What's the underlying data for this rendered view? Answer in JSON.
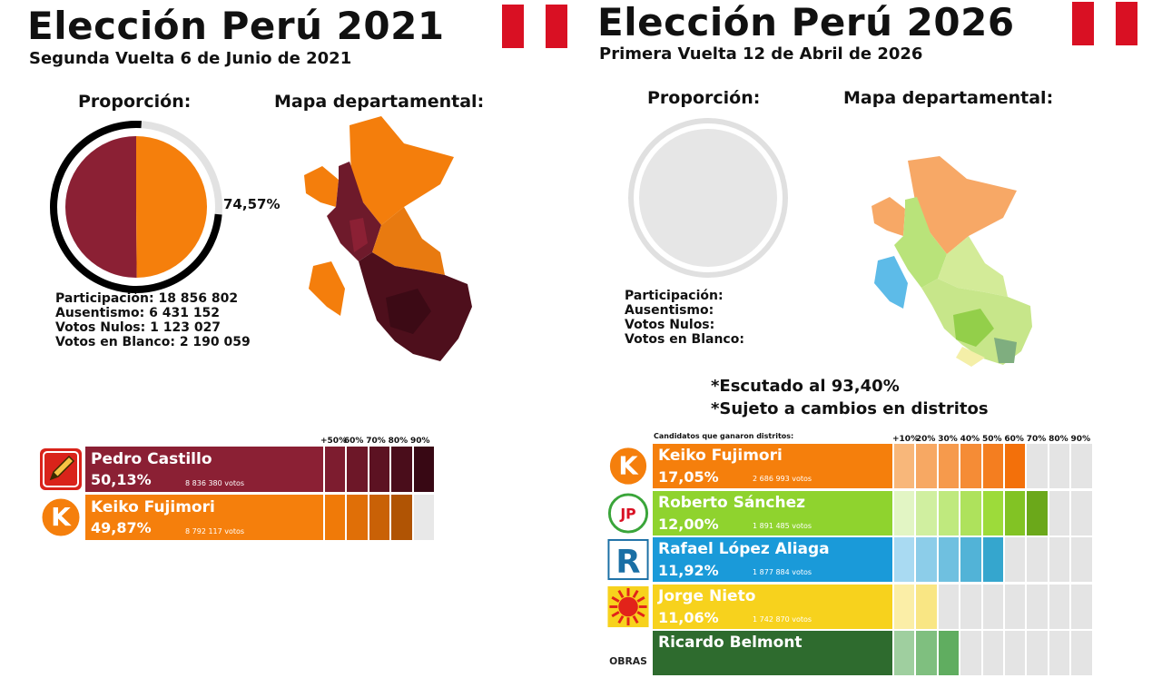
{
  "panel_2021": {
    "title": "Elección Perú 2021",
    "subtitle": "Segunda Vuelta 6 de Junio de 2021",
    "proportion_heading": "Proporción:",
    "map_heading": "Mapa departamental:",
    "turnout_label": "74,57%",
    "stats": [
      "Participación: 18 856 802",
      "Ausentismo: 6 431 152",
      "Votos Nulos: 1 123 027",
      "Votos en Blanco: 2 190 059"
    ],
    "threshold_headers": [
      "+50%",
      "60%",
      "70%",
      "80%",
      "90%"
    ],
    "candidates": [
      {
        "name": "Pedro Castillo",
        "percent": "50,13%",
        "votes": "8 836 380 votos",
        "color": "#8b2034",
        "logo": "pencil-icon",
        "scale_colors": [
          "#7d1c2f",
          "#6d1728",
          "#5c1222",
          "#4a0d1b",
          "#380814"
        ]
      },
      {
        "name": "Keiko Fujimori",
        "percent": "49,87%",
        "votes": "8 792 117 votos",
        "color": "#f57f0c",
        "logo": "k-logo-icon",
        "scale_colors": [
          "#f07a08",
          "#e06f07",
          "#c96106",
          "#b05404",
          "#e8e8e8"
        ]
      }
    ],
    "chart_data": {
      "type": "pie",
      "title": "Proporción:",
      "categories": [
        "Pedro Castillo",
        "Keiko Fujimori"
      ],
      "values": [
        50.13,
        49.87
      ],
      "colors": [
        "#8b2034",
        "#f57f0c"
      ],
      "turnout_ring": 74.57
    }
  },
  "panel_2026": {
    "title": "Elección Perú 2026",
    "subtitle": "Primera Vuelta 12 de Abril de 2026",
    "proportion_heading": "Proporción:",
    "map_heading": "Mapa departamental:",
    "stats": [
      "Participación:",
      "Ausentismo:",
      "Votos Nulos:",
      "Votos en Blanco:"
    ],
    "notes": [
      "*Escutado al 93,40%",
      "*Sujeto a cambios en distritos"
    ],
    "candidates_header": "Candidatos que ganaron distritos:",
    "threshold_headers": [
      "+10%",
      "20%",
      "30%",
      "40%",
      "50%",
      "60%",
      "70%",
      "80%",
      "90%"
    ],
    "candidates": [
      {
        "name": "Keiko Fujimori",
        "percent": "17,05%",
        "votes": "2 686 993 votos",
        "color": "#f57f0c",
        "logo": "k-logo-icon",
        "scale_colors": [
          "#f8b77a",
          "#f7a863",
          "#f69a4c",
          "#f58c36",
          "#f47e20",
          "#f3700a",
          "#e4e4e4",
          "#e4e4e4",
          "#e4e4e4"
        ]
      },
      {
        "name": "Roberto Sánchez",
        "percent": "12,00%",
        "votes": "1 891 485 votos",
        "color": "#8fd32e",
        "logo": "jp-logo-icon",
        "scale_colors": [
          "#e2f5c4",
          "#d0efa0",
          "#bfe97e",
          "#aee25c",
          "#9ddb3a",
          "#82c324",
          "#6ba81a",
          "#e4e4e4",
          "#e4e4e4"
        ]
      },
      {
        "name": "Rafael López Aliaga",
        "percent": "11,92%",
        "votes": "1 877 884 votos",
        "color": "#1a9ad9",
        "logo": "r-logo-icon",
        "scale_colors": [
          "#a9daf2",
          "#8ccde9",
          "#6fc0e0",
          "#52b3d7",
          "#35a6ce",
          "#e4e4e4",
          "#e4e4e4",
          "#e4e4e4",
          "#e4e4e4"
        ]
      },
      {
        "name": "Jorge Nieto",
        "percent": "11,06%",
        "votes": "1 742 870 votos",
        "color": "#f7d21d",
        "logo": "sun-logo-icon",
        "scale_colors": [
          "#fbeea7",
          "#f9e684",
          "#e4e4e4",
          "#e4e4e4",
          "#e4e4e4",
          "#e4e4e4",
          "#e4e4e4",
          "#e4e4e4",
          "#e4e4e4"
        ]
      },
      {
        "name": "Ricardo Belmont",
        "percent": "",
        "votes": "",
        "color": "#2e6b2e",
        "logo": "obras-logo-icon",
        "logo_text": "OBRAS",
        "scale_colors": [
          "#9fcf9f",
          "#7fbf7f",
          "#60ad60",
          "#e4e4e4",
          "#e4e4e4",
          "#e4e4e4",
          "#e4e4e4",
          "#e4e4e4",
          "#e4e4e4"
        ]
      }
    ],
    "chart_data": {
      "type": "bar",
      "categories": [
        "Keiko Fujimori",
        "Roberto Sánchez",
        "Rafael López Aliaga",
        "Jorge Nieto"
      ],
      "values": [
        17.05,
        12.0,
        11.92,
        11.06
      ],
      "ylim": [
        0,
        100
      ]
    }
  },
  "colors": {
    "flag_red": "#d91023",
    "flag_white": "#ffffff",
    "ring_dark": "#000000",
    "ring_light": "#e2e2e2",
    "empty_circle": "#e6e6e6"
  }
}
